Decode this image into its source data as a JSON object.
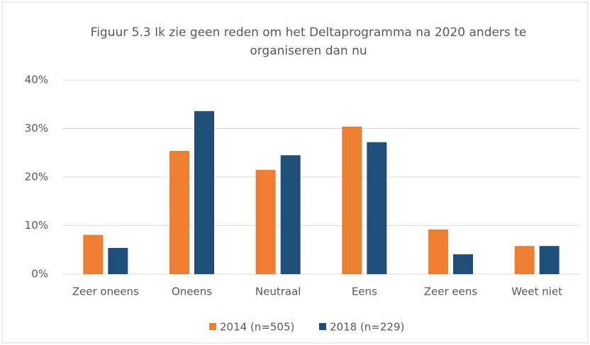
{
  "chart_data": {
    "type": "bar",
    "title": "Figuur 5.3 Ik zie geen reden om het Deltaprogramma na 2020 anders te organiseren dan nu",
    "categories": [
      "Zeer oneens",
      "Oneens",
      "Neutraal",
      "Eens",
      "Zeer eens",
      "Weet niet"
    ],
    "series": [
      {
        "name": "2014 (n=505)",
        "color": "#ed7d31",
        "values": [
          8.1,
          25.4,
          21.5,
          30.4,
          9.2,
          5.8
        ]
      },
      {
        "name": "2018 (n=229)",
        "color": "#1f4e79",
        "values": [
          5.4,
          33.6,
          24.5,
          27.2,
          4.1,
          5.8
        ]
      }
    ],
    "ylim": [
      0,
      40
    ],
    "yticks": [
      {
        "value": 0,
        "label": "0%"
      },
      {
        "value": 10,
        "label": "10%"
      },
      {
        "value": 20,
        "label": "20%"
      },
      {
        "value": 30,
        "label": "30%"
      },
      {
        "value": 40,
        "label": "40%"
      }
    ],
    "grid": true,
    "legend": "bottom"
  }
}
